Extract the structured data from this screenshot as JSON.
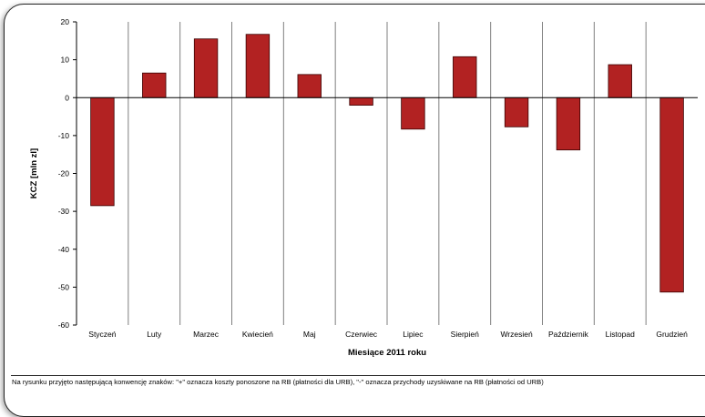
{
  "chart_data": {
    "type": "bar",
    "categories": [
      "Styczeń",
      "Luty",
      "Marzec",
      "Kwiecień",
      "Maj",
      "Czerwiec",
      "Lipiec",
      "Sierpień",
      "Wrzesień",
      "Październik",
      "Listopad",
      "Grudzień"
    ],
    "values": [
      -28.5,
      6.5,
      15.5,
      16.7,
      6.1,
      -2.0,
      -8.3,
      10.8,
      -7.7,
      -13.8,
      8.7,
      -51.3
    ],
    "title": "",
    "xlabel": "Miesiące 2011  roku",
    "ylabel": "KCZ [mln zl]",
    "ylim": [
      -60,
      20
    ],
    "yticks": [
      20,
      10,
      0,
      -10,
      -20,
      -30,
      -40,
      -50,
      -60
    ],
    "grid": "vertical",
    "legend": "none",
    "colors": {
      "bar_fill": "#B22222",
      "bar_stroke": "#3a0000",
      "grid": "#7f7f7f"
    }
  },
  "footnote": "Na rysunku przyjęto następującą konwencję znaków: \"+\" oznacza koszty ponoszone na RB (płatności dla URB), \"-\" oznacza przychody uzyskiwane na RB (płatności od URB)"
}
